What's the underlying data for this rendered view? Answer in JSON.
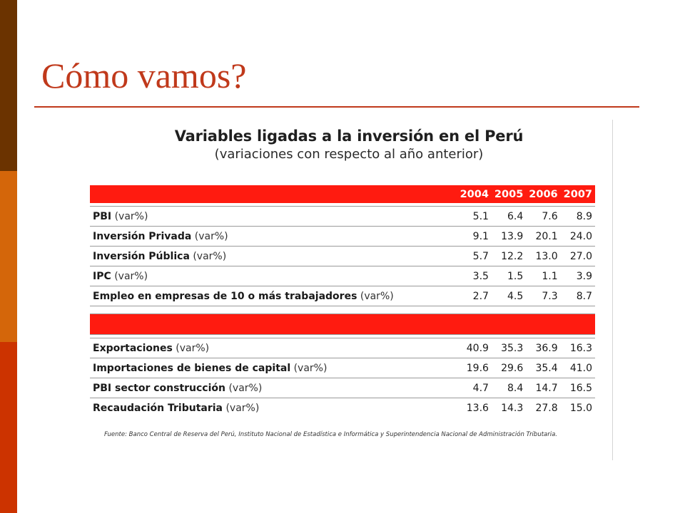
{
  "slide": {
    "title": "Cómo vamos?",
    "accent_color": "#c0391b",
    "sidebar_colors": [
      "#6b3300",
      "#d4660a",
      "#cc3300"
    ]
  },
  "table_panel": {
    "title": "Variables ligadas a la inversión en el Perú",
    "subtitle": "(variaciones con respecto al año anterior)",
    "header_color": "#ff1b10",
    "years": [
      "2004",
      "2005",
      "2006",
      "2007"
    ],
    "group1_rows": [
      {
        "name": "PBI",
        "unit": "(var%)",
        "values": [
          "5.1",
          "6.4",
          "7.6",
          "8.9"
        ]
      },
      {
        "name": "Inversión Privada",
        "unit": "(var%)",
        "values": [
          "9.1",
          "13.9",
          "20.1",
          "24.0"
        ]
      },
      {
        "name": "Inversión Pública",
        "unit": "(var%)",
        "values": [
          "5.7",
          "12.2",
          "13.0",
          "27.0"
        ]
      },
      {
        "name": "IPC",
        "unit": "(var%)",
        "values": [
          "3.5",
          "1.5",
          "1.1",
          "3.9"
        ]
      },
      {
        "name": "Empleo en empresas de 10 o más trabajadores",
        "unit": "(var%)",
        "values": [
          "2.7",
          "4.5",
          "7.3",
          "8.7"
        ]
      }
    ],
    "group2_rows": [
      {
        "name": "Exportaciones",
        "unit": "(var%)",
        "values": [
          "40.9",
          "35.3",
          "36.9",
          "16.3"
        ]
      },
      {
        "name": "Importaciones de bienes de capital",
        "unit": "(var%)",
        "values": [
          "19.6",
          "29.6",
          "35.4",
          "41.0"
        ]
      },
      {
        "name": "PBI sector construcción",
        "unit": "(var%)",
        "values": [
          "4.7",
          "8.4",
          "14.7",
          "16.5"
        ]
      },
      {
        "name": "Recaudación Tributaria",
        "unit": "(var%)",
        "values": [
          "13.6",
          "14.3",
          "27.8",
          "15.0"
        ]
      }
    ],
    "source": "Fuente: Banco Central de Reserva del Perú, Instituto Nacional de Estadística e Informática y Superintendencia Nacional de Administración Tributaria."
  }
}
